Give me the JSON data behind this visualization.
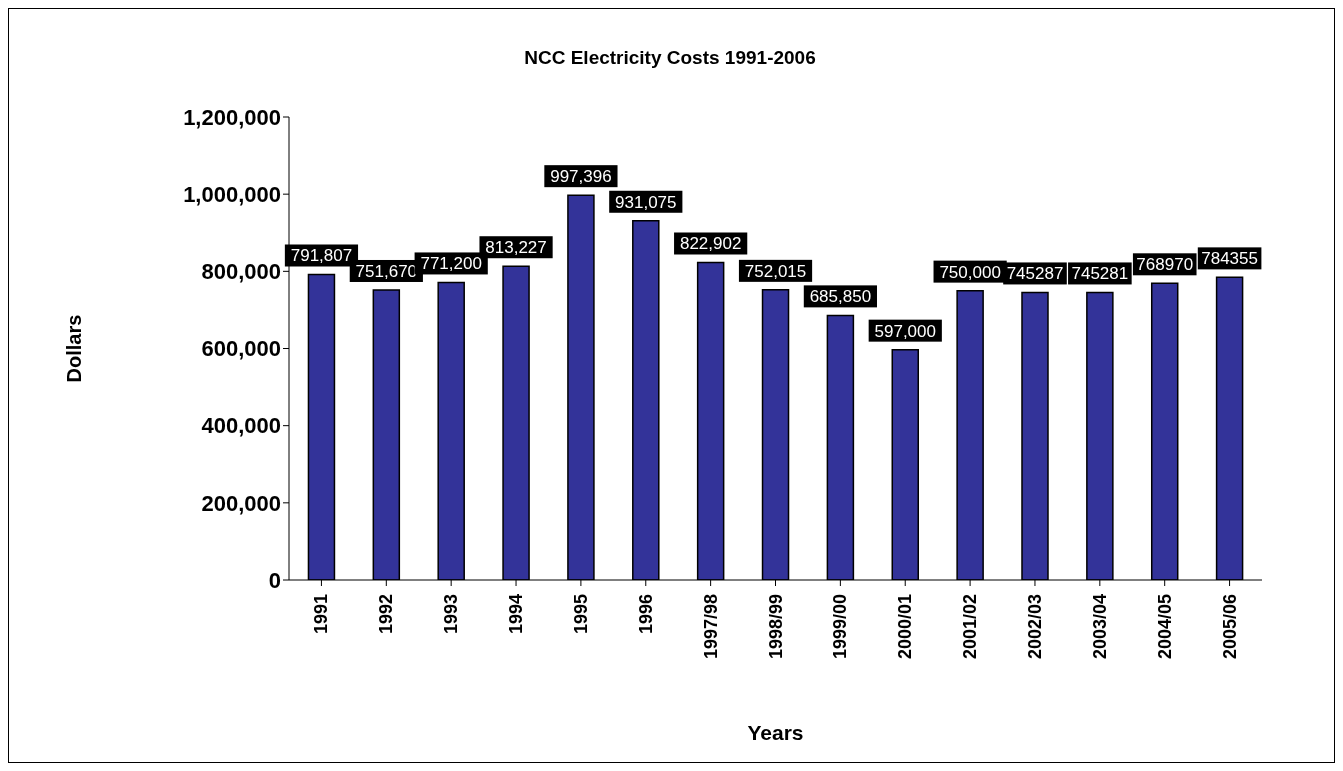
{
  "chart_data": {
    "type": "bar",
    "title": "NCC Electricity Costs 1991-2006",
    "xlabel": "Years",
    "ylabel": "Dollars",
    "categories": [
      "1991",
      "1992",
      "1993",
      "1994",
      "1995",
      "1996",
      "1997/98",
      "1998/99",
      "1999/00",
      "2000/01",
      "2001/02",
      "2002/03",
      "2003/04",
      "2004/05",
      "2005/06"
    ],
    "values": [
      791807,
      751670,
      771200,
      813227,
      997396,
      931075,
      822902,
      752015,
      685850,
      597000,
      750000,
      745287,
      745281,
      768970,
      784355
    ],
    "value_labels": [
      "791,807",
      "751,670",
      "771,200",
      "813,227",
      "997,396",
      "931,075",
      "822,902",
      "752,015",
      "685,850",
      "597,000",
      "750,000",
      "745287",
      "745281",
      "768970",
      "784355"
    ],
    "color": "#333399",
    "ylim": [
      0,
      1200000
    ],
    "yticks": [
      0,
      {
        "value": 200000,
        "label": "200,000"
      },
      {
        "value": 400000,
        "label": "400,000"
      },
      {
        "value": 600000,
        "label": "600,000"
      },
      {
        "value": 800000,
        "label": "800,000"
      },
      {
        "value": 1000000,
        "label": "1,000,000"
      },
      {
        "value": 1200000,
        "label": "1,200,000"
      }
    ],
    "legend": false
  }
}
